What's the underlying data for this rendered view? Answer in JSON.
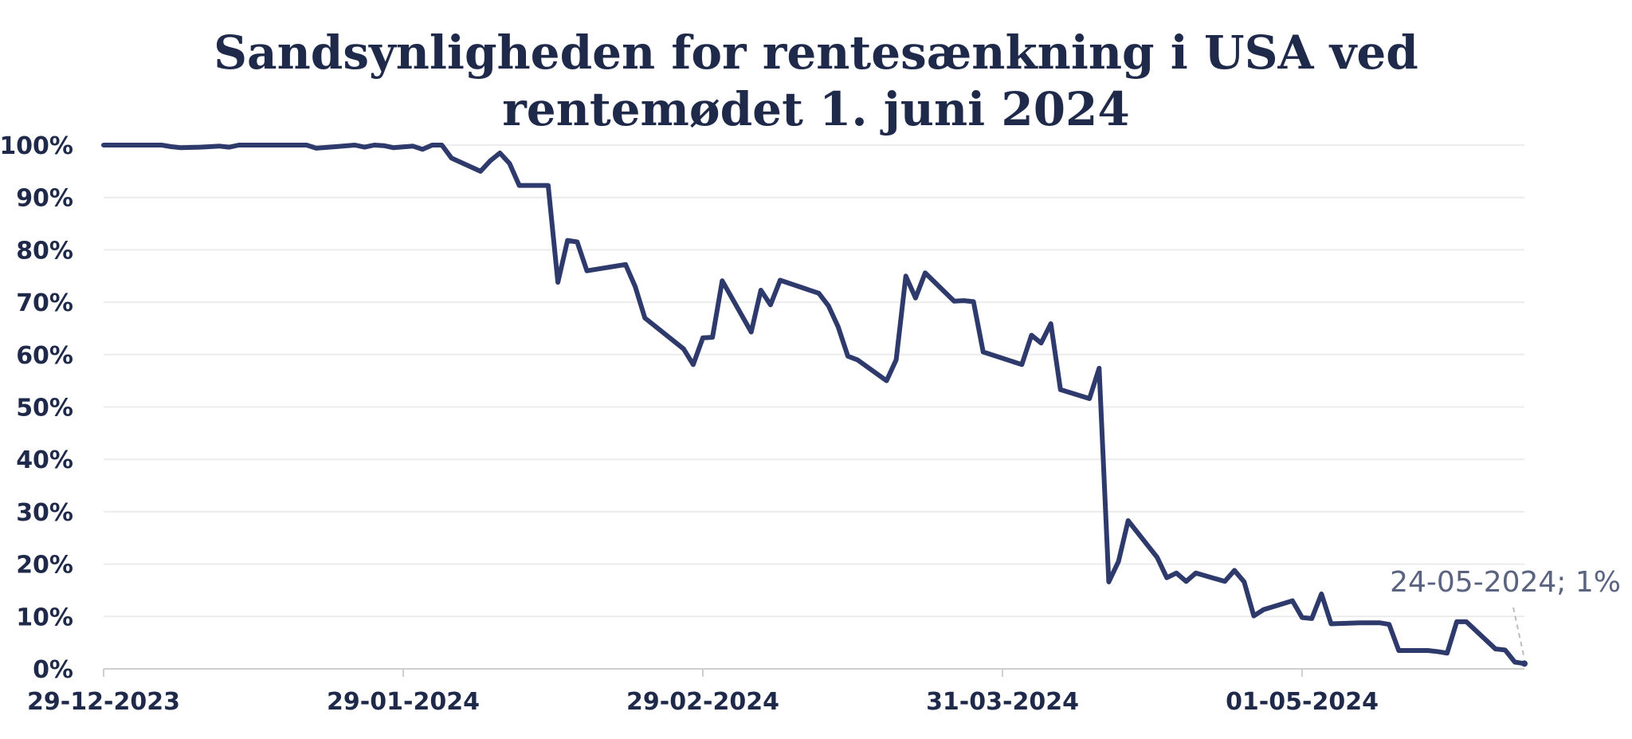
{
  "chart_data": {
    "type": "line",
    "title_lines": [
      "Sandsynligheden for rentesænkning i USA ved",
      "rentemødet 1. juni 2024"
    ],
    "xlabel": "",
    "ylabel": "",
    "y_ticks": [
      "100%",
      "90%",
      "80%",
      "70%",
      "60%",
      "50%",
      "40%",
      "30%",
      "20%",
      "10%",
      "0%"
    ],
    "x_ticks": [
      "29-12-2023",
      "29-01-2024",
      "29-02-2024",
      "31-03-2024",
      "01-05-2024"
    ],
    "ylim": [
      0,
      100
    ],
    "xlim": [
      "2023-12-29",
      "2024-05-24"
    ],
    "grid": true,
    "series": [
      {
        "color": "#2e3a6b",
        "points": [
          [
            "2023-12-29",
            100
          ],
          [
            "2023-12-31",
            100
          ],
          [
            "2024-01-02",
            100
          ],
          [
            "2024-01-04",
            100
          ],
          [
            "2024-01-05",
            99.7
          ],
          [
            "2024-01-06",
            99.5
          ],
          [
            "2024-01-08",
            99.6
          ],
          [
            "2024-01-10",
            99.8
          ],
          [
            "2024-01-11",
            99.6
          ],
          [
            "2024-01-12",
            100
          ],
          [
            "2024-01-15",
            100
          ],
          [
            "2024-01-17",
            100
          ],
          [
            "2024-01-19",
            100
          ],
          [
            "2024-01-20",
            99.4
          ],
          [
            "2024-01-22",
            99.7
          ],
          [
            "2024-01-24",
            100
          ],
          [
            "2024-01-25",
            99.6
          ],
          [
            "2024-01-26",
            100
          ],
          [
            "2024-01-27",
            99.9
          ],
          [
            "2024-01-28",
            99.5
          ],
          [
            "2024-01-30",
            99.8
          ],
          [
            "2024-01-31",
            99.2
          ],
          [
            "2024-02-01",
            100
          ],
          [
            "2024-02-02",
            100
          ],
          [
            "2024-02-03",
            97.5
          ],
          [
            "2024-02-06",
            95
          ],
          [
            "2024-02-07",
            97
          ],
          [
            "2024-02-08",
            98.5
          ],
          [
            "2024-02-09",
            96.5
          ],
          [
            "2024-02-10",
            92.3
          ],
          [
            "2024-02-13",
            92.3
          ],
          [
            "2024-02-14",
            73.8
          ],
          [
            "2024-02-15",
            81.8
          ],
          [
            "2024-02-16",
            81.5
          ],
          [
            "2024-02-17",
            76
          ],
          [
            "2024-02-21",
            77.2
          ],
          [
            "2024-02-22",
            73
          ],
          [
            "2024-02-23",
            67
          ],
          [
            "2024-02-27",
            61.1
          ],
          [
            "2024-02-28",
            58.1
          ],
          [
            "2024-02-29",
            63.2
          ],
          [
            "2024-03-01",
            63.3
          ],
          [
            "2024-03-02",
            74.1
          ],
          [
            "2024-03-05",
            64.3
          ],
          [
            "2024-03-06",
            72.3
          ],
          [
            "2024-03-07",
            69.5
          ],
          [
            "2024-03-08",
            74.2
          ],
          [
            "2024-03-12",
            71.7
          ],
          [
            "2024-03-13",
            69.3
          ],
          [
            "2024-03-14",
            65.3
          ],
          [
            "2024-03-15",
            59.7
          ],
          [
            "2024-03-16",
            59
          ],
          [
            "2024-03-19",
            55
          ],
          [
            "2024-03-20",
            59
          ],
          [
            "2024-03-21",
            75
          ],
          [
            "2024-03-22",
            70.8
          ],
          [
            "2024-03-23",
            75.6
          ],
          [
            "2024-03-26",
            70.2
          ],
          [
            "2024-03-27",
            70.3
          ],
          [
            "2024-03-28",
            70.1
          ],
          [
            "2024-03-29",
            60.5
          ],
          [
            "2024-04-02",
            58.1
          ],
          [
            "2024-04-03",
            63.7
          ],
          [
            "2024-04-04",
            62.2
          ],
          [
            "2024-04-05",
            65.9
          ],
          [
            "2024-04-06",
            53.3
          ],
          [
            "2024-04-09",
            51.6
          ],
          [
            "2024-04-10",
            57.4
          ],
          [
            "2024-04-11",
            16.6
          ],
          [
            "2024-04-12",
            20.5
          ],
          [
            "2024-04-13",
            28.3
          ],
          [
            "2024-04-16",
            21.3
          ],
          [
            "2024-04-17",
            17.4
          ],
          [
            "2024-04-18",
            18.3
          ],
          [
            "2024-04-19",
            16.7
          ],
          [
            "2024-04-20",
            18.3
          ],
          [
            "2024-04-23",
            16.7
          ],
          [
            "2024-04-24",
            18.8
          ],
          [
            "2024-04-25",
            16.6
          ],
          [
            "2024-04-26",
            10.1
          ],
          [
            "2024-04-27",
            11.3
          ],
          [
            "2024-04-30",
            13
          ],
          [
            "2024-05-01",
            9.8
          ],
          [
            "2024-05-02",
            9.6
          ],
          [
            "2024-05-03",
            14.3
          ],
          [
            "2024-05-04",
            8.6
          ],
          [
            "2024-05-07",
            8.8
          ],
          [
            "2024-05-09",
            8.8
          ],
          [
            "2024-05-10",
            8.5
          ],
          [
            "2024-05-11",
            3.5
          ],
          [
            "2024-05-14",
            3.5
          ],
          [
            "2024-05-15",
            3.3
          ],
          [
            "2024-05-16",
            3
          ],
          [
            "2024-05-17",
            9
          ],
          [
            "2024-05-18",
            9
          ],
          [
            "2024-05-21",
            3.8
          ],
          [
            "2024-05-22",
            3.6
          ],
          [
            "2024-05-23",
            1.3
          ],
          [
            "2024-05-24",
            1
          ]
        ]
      }
    ],
    "annotation": {
      "text": "24-05-2024; 1%",
      "x": "2024-05-24",
      "y": 1
    }
  }
}
